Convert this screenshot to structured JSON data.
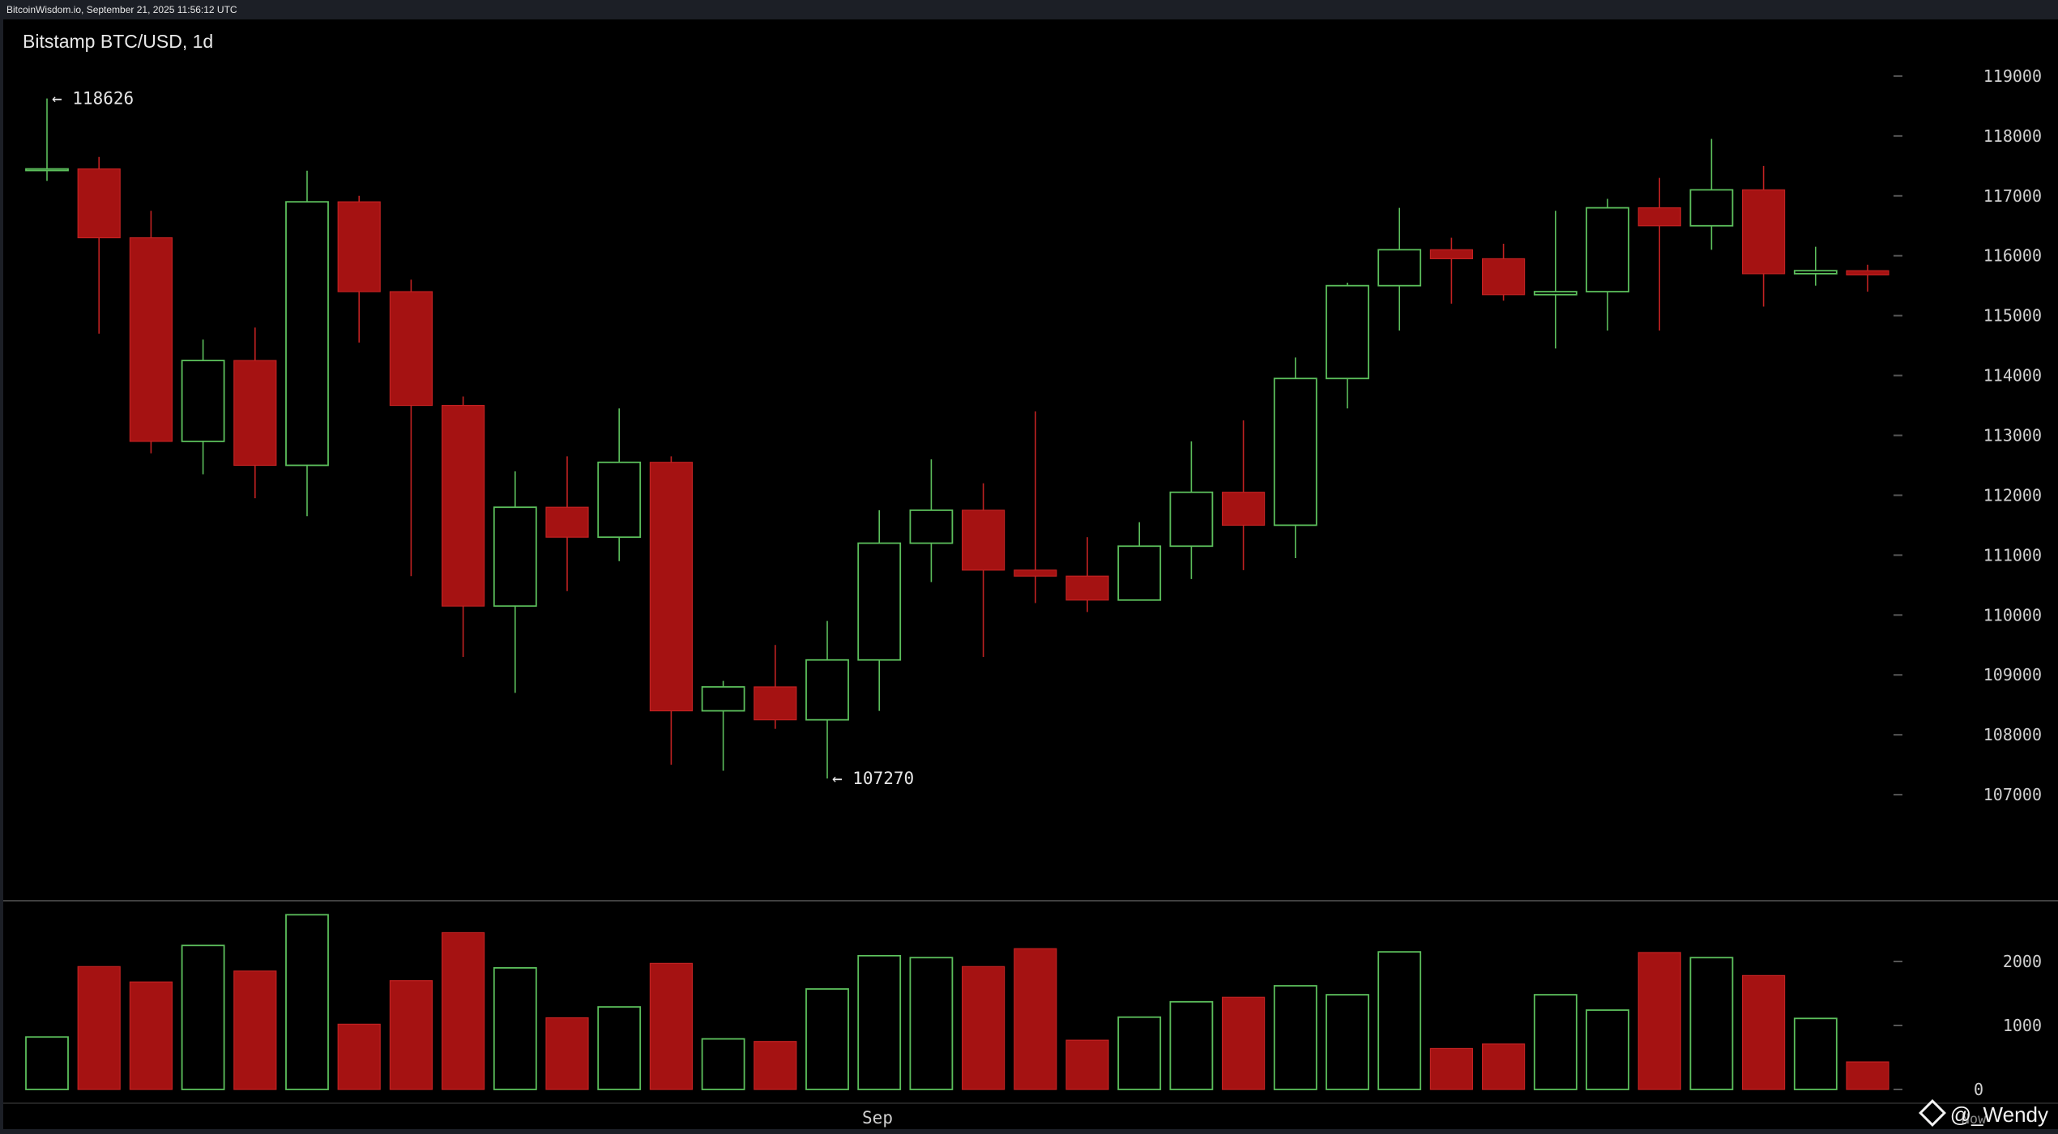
{
  "header": {
    "source_line": "BitcoinWisdom.io, September 21, 2025 11:56:12 UTC"
  },
  "watermark": {
    "label": "@_Wendy"
  },
  "colors": {
    "background": "#000000",
    "frame": "#1c1f26",
    "up": "#5cbf5c",
    "down": "#a51212",
    "down_wick": "#c22222",
    "axis_text": "#d0d0d0",
    "tick": "#555555",
    "divider": "#555555"
  },
  "chart_data": {
    "type": "candlestick",
    "title": "Bitstamp BTC/USD, 1d",
    "xlabel": "",
    "ylabel": "",
    "x_tick_labels": [
      "Sep",
      "Now"
    ],
    "price_ticks": [
      107000,
      108000,
      109000,
      110000,
      111000,
      112000,
      113000,
      114000,
      115000,
      116000,
      117000,
      118000,
      119000
    ],
    "volume_ticks": [
      0,
      1000,
      2000
    ],
    "price_range": [
      106000,
      120000
    ],
    "volume_range": [
      0,
      2800
    ],
    "annotations": [
      {
        "label": "← 118626",
        "candle": 0,
        "value": 118626
      },
      {
        "label": "← 107270",
        "candle": 15,
        "value": 107270
      }
    ],
    "candles": [
      {
        "open": 117450,
        "high": 118626,
        "low": 117250,
        "close": 117450,
        "volume": 820
      },
      {
        "open": 117450,
        "high": 117650,
        "low": 114700,
        "close": 116300,
        "volume": 1920
      },
      {
        "open": 116300,
        "high": 116750,
        "low": 112700,
        "close": 112900,
        "volume": 1680
      },
      {
        "open": 112900,
        "high": 114600,
        "low": 112350,
        "close": 114250,
        "volume": 2250
      },
      {
        "open": 114250,
        "high": 114800,
        "low": 111950,
        "close": 112500,
        "volume": 1850
      },
      {
        "open": 112500,
        "high": 117420,
        "low": 111650,
        "close": 116900,
        "volume": 2730
      },
      {
        "open": 116900,
        "high": 117000,
        "low": 114550,
        "close": 115400,
        "volume": 1020
      },
      {
        "open": 115400,
        "high": 115600,
        "low": 110650,
        "close": 113500,
        "volume": 1700
      },
      {
        "open": 113500,
        "high": 113650,
        "low": 109300,
        "close": 110150,
        "volume": 2450
      },
      {
        "open": 110150,
        "high": 112400,
        "low": 108700,
        "close": 111800,
        "volume": 1900
      },
      {
        "open": 111800,
        "high": 112650,
        "low": 110400,
        "close": 111300,
        "volume": 1120
      },
      {
        "open": 111300,
        "high": 113450,
        "low": 110900,
        "close": 112550,
        "volume": 1290
      },
      {
        "open": 112550,
        "high": 112650,
        "low": 107500,
        "close": 108400,
        "volume": 1970
      },
      {
        "open": 108400,
        "high": 108900,
        "low": 107400,
        "close": 108800,
        "volume": 790
      },
      {
        "open": 108800,
        "high": 109500,
        "low": 108100,
        "close": 108250,
        "volume": 750
      },
      {
        "open": 108250,
        "high": 109900,
        "low": 107270,
        "close": 109250,
        "volume": 1570
      },
      {
        "open": 109250,
        "high": 111750,
        "low": 108400,
        "close": 111200,
        "volume": 2090
      },
      {
        "open": 111200,
        "high": 112600,
        "low": 110550,
        "close": 111750,
        "volume": 2060
      },
      {
        "open": 111750,
        "high": 112200,
        "low": 109300,
        "close": 110750,
        "volume": 1920
      },
      {
        "open": 110750,
        "high": 113400,
        "low": 110200,
        "close": 110650,
        "volume": 2200
      },
      {
        "open": 110650,
        "high": 111300,
        "low": 110050,
        "close": 110250,
        "volume": 770
      },
      {
        "open": 110250,
        "high": 111550,
        "low": 110250,
        "close": 111150,
        "volume": 1130
      },
      {
        "open": 111150,
        "high": 112900,
        "low": 110600,
        "close": 112050,
        "volume": 1370
      },
      {
        "open": 112050,
        "high": 113250,
        "low": 110750,
        "close": 111500,
        "volume": 1440
      },
      {
        "open": 111500,
        "high": 114300,
        "low": 110950,
        "close": 113950,
        "volume": 1620
      },
      {
        "open": 113950,
        "high": 115550,
        "low": 113450,
        "close": 115500,
        "volume": 1480
      },
      {
        "open": 115500,
        "high": 116800,
        "low": 114750,
        "close": 116100,
        "volume": 2150
      },
      {
        "open": 116100,
        "high": 116300,
        "low": 115200,
        "close": 115950,
        "volume": 640
      },
      {
        "open": 115950,
        "high": 116200,
        "low": 115250,
        "close": 115350,
        "volume": 710
      },
      {
        "open": 115350,
        "high": 116750,
        "low": 114450,
        "close": 115400,
        "volume": 1480
      },
      {
        "open": 115400,
        "high": 116950,
        "low": 114750,
        "close": 116800,
        "volume": 1240
      },
      {
        "open": 116800,
        "high": 117300,
        "low": 114750,
        "close": 116500,
        "volume": 2140
      },
      {
        "open": 116500,
        "high": 117950,
        "low": 116100,
        "close": 117100,
        "volume": 2060
      },
      {
        "open": 117100,
        "high": 117500,
        "low": 115150,
        "close": 115700,
        "volume": 1780
      },
      {
        "open": 115700,
        "high": 116150,
        "low": 115500,
        "close": 115750,
        "volume": 1110
      },
      {
        "open": 115750,
        "high": 115850,
        "low": 115400,
        "close": 115680,
        "volume": 430
      }
    ]
  }
}
